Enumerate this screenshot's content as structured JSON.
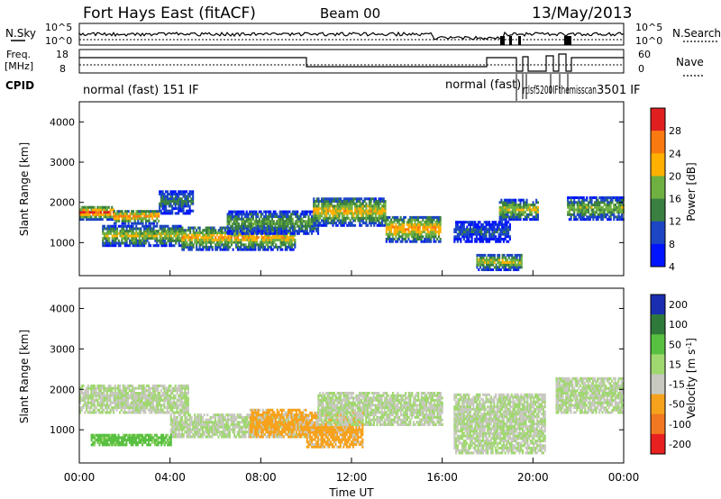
{
  "header": {
    "title": "Fort Hays East (fitACF)",
    "beam": "Beam 00",
    "date": "13/May/2013"
  },
  "status_panels": {
    "nsky_label": "N.Sky",
    "nsky_ticks": [
      "10^5",
      "10^0"
    ],
    "nsearch_label": "N.Search",
    "nsearch_ticks": [
      "10^5",
      "10^0"
    ],
    "freq_label": "Freq.",
    "freq_unit": "[MHz]",
    "freq_ticks": [
      "18",
      "8"
    ],
    "nave_label": "Nave",
    "nave_ticks": [
      "60",
      "0"
    ],
    "cpid_label": "CPID",
    "cpid_text_1": "normal (fast) 151 IF",
    "cpid_text_2": "normal (fast)",
    "cpid_text_3": "3501 IF",
    "cpid_cluttered": "rtlsf5200IFthemisscan"
  },
  "chart_data": [
    {
      "type": "heatmap",
      "name": "power",
      "title": "",
      "xlabel": "",
      "ylabel": "Slant Range [km]",
      "xlim": [
        0,
        24
      ],
      "ylim": [
        180,
        4500
      ],
      "x_ticks": [
        "00:00",
        "04:00",
        "08:00",
        "12:00",
        "16:00",
        "20:00",
        "00:00"
      ],
      "y_ticks": [
        "1000",
        "2000",
        "3000",
        "4000"
      ],
      "colorbar": {
        "label": "Power [dB]",
        "ticks": [
          "4",
          "8",
          "12",
          "16",
          "20",
          "24",
          "28"
        ],
        "range": [
          0,
          30
        ],
        "colors": [
          "#0014ff",
          "#1b46c4",
          "#3a8040",
          "#70b040",
          "#ffb000",
          "#f87a10",
          "#e02020"
        ]
      },
      "bands": [
        {
          "t0": 0.0,
          "t1": 1.5,
          "r0": 1550,
          "r1": 1900,
          "core_power": 26
        },
        {
          "t0": 1.5,
          "t1": 3.5,
          "r0": 1450,
          "r1": 1800,
          "core_power": 22
        },
        {
          "t0": 3.5,
          "t1": 5.0,
          "r0": 1700,
          "r1": 2300,
          "core_power": 10
        },
        {
          "t0": 1.0,
          "t1": 4.5,
          "r0": 900,
          "r1": 1400,
          "core_power": 18
        },
        {
          "t0": 4.5,
          "t1": 9.5,
          "r0": 800,
          "r1": 1400,
          "core_power": 20
        },
        {
          "t0": 6.5,
          "t1": 10.5,
          "r0": 1200,
          "r1": 1750,
          "core_power": 14
        },
        {
          "t0": 10.3,
          "t1": 13.5,
          "r0": 1400,
          "r1": 2100,
          "core_power": 20
        },
        {
          "t0": 13.5,
          "t1": 15.9,
          "r0": 1000,
          "r1": 1650,
          "core_power": 22
        },
        {
          "t0": 16.5,
          "t1": 19.0,
          "r0": 1000,
          "r1": 1500,
          "core_power": 8
        },
        {
          "t0": 17.5,
          "t1": 19.5,
          "r0": 300,
          "r1": 700,
          "core_power": 18
        },
        {
          "t0": 18.5,
          "t1": 20.2,
          "r0": 1550,
          "r1": 2050,
          "core_power": 18
        },
        {
          "t0": 21.5,
          "t1": 24.0,
          "r0": 1550,
          "r1": 2100,
          "core_power": 16
        }
      ]
    },
    {
      "type": "heatmap",
      "name": "velocity",
      "title": "",
      "xlabel": "Time UT",
      "ylabel": "Slant Range [km]",
      "xlim": [
        0,
        24
      ],
      "ylim": [
        180,
        4500
      ],
      "x_ticks": [
        "00:00",
        "04:00",
        "08:00",
        "12:00",
        "16:00",
        "20:00",
        "00:00"
      ],
      "y_ticks": [
        "1000",
        "2000",
        "3000",
        "4000"
      ],
      "colorbar": {
        "label": "Velocity [m s^-1]",
        "ticks": [
          "200",
          "100",
          "50",
          "15",
          "-15",
          "-50",
          "-100",
          "-200"
        ],
        "range": [
          -250,
          250
        ],
        "colors": [
          "#1a2fb0",
          "#2f7a3a",
          "#58c040",
          "#a0d870",
          "#c8c8c0",
          "#f6a21d",
          "#f07820",
          "#e82020"
        ]
      },
      "bands": [
        {
          "t0": 0.0,
          "t1": 4.8,
          "r0": 1400,
          "r1": 2100,
          "velocity": 0
        },
        {
          "t0": 4.0,
          "t1": 10.0,
          "r0": 800,
          "r1": 1400,
          "velocity": 0
        },
        {
          "t0": 7.5,
          "t1": 10.0,
          "r0": 800,
          "r1": 1500,
          "velocity": -40
        },
        {
          "t0": 10.0,
          "t1": 12.5,
          "r0": 550,
          "r1": 1400,
          "velocity": -40
        },
        {
          "t0": 10.5,
          "t1": 16.0,
          "r0": 1100,
          "r1": 1900,
          "velocity": 0
        },
        {
          "t0": 0.5,
          "t1": 4.0,
          "r0": 600,
          "r1": 900,
          "velocity": 40
        },
        {
          "t0": 16.5,
          "t1": 20.5,
          "r0": 400,
          "r1": 1900,
          "velocity": 0
        },
        {
          "t0": 21.0,
          "t1": 24.0,
          "r0": 1400,
          "r1": 2300,
          "velocity": 0
        }
      ]
    }
  ]
}
